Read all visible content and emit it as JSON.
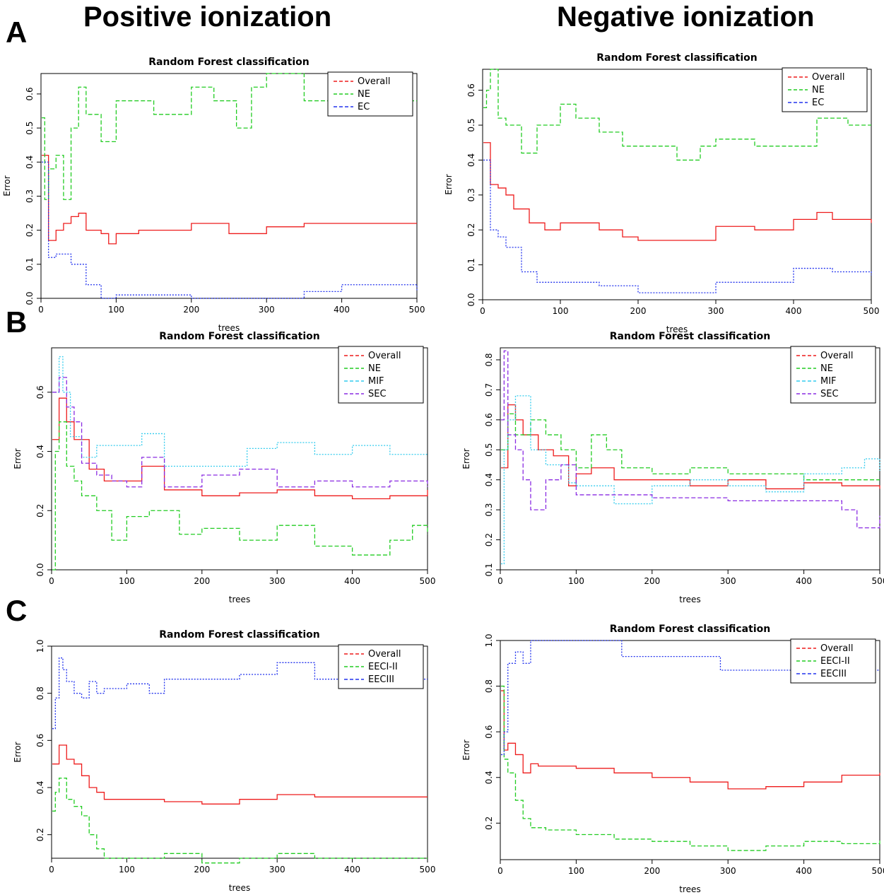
{
  "column_titles": [
    "Positive ionization",
    "Negative ionization"
  ],
  "row_labels": [
    "A",
    "B",
    "C"
  ],
  "colors": {
    "Overall": "#ee1c1c",
    "NE": "#22cc22",
    "EC": "#2233ee",
    "MIF": "#33ccee",
    "SEC": "#8a2be2",
    "EECI-II": "#22cc22",
    "EECIII": "#2233ee"
  },
  "chart_data": [
    {
      "type": "line",
      "panel": "A",
      "ionization": "Positive ionization",
      "title": "Random Forest classification",
      "xlabel": "trees",
      "ylabel": "Error",
      "xlim": [
        0,
        500
      ],
      "ylim": [
        0,
        0.66
      ],
      "xticks": [
        "0",
        "100",
        "200",
        "300",
        "400",
        "500"
      ],
      "yticks": [
        "0.0",
        "0.1",
        "0.2",
        "0.3",
        "0.4",
        "0.5",
        "0.6"
      ],
      "legend": "top-right",
      "grid": false,
      "series": [
        {
          "name": "Overall",
          "x": [
            1,
            10,
            20,
            30,
            40,
            50,
            60,
            80,
            90,
            100,
            130,
            150,
            200,
            250,
            300,
            350,
            400,
            500
          ],
          "y": [
            0.42,
            0.17,
            0.2,
            0.22,
            0.24,
            0.25,
            0.2,
            0.19,
            0.16,
            0.19,
            0.2,
            0.2,
            0.22,
            0.19,
            0.21,
            0.22,
            0.22,
            0.22
          ]
        },
        {
          "name": "NE",
          "x": [
            1,
            5,
            10,
            20,
            30,
            40,
            50,
            60,
            80,
            100,
            150,
            200,
            230,
            260,
            280,
            300,
            350,
            400,
            500
          ],
          "y": [
            0.53,
            0.29,
            0.38,
            0.42,
            0.29,
            0.5,
            0.62,
            0.54,
            0.46,
            0.58,
            0.54,
            0.62,
            0.58,
            0.5,
            0.62,
            0.66,
            0.58,
            0.58,
            0.58
          ]
        },
        {
          "name": "EC",
          "x": [
            1,
            10,
            20,
            40,
            60,
            80,
            100,
            150,
            200,
            250,
            300,
            350,
            400,
            500
          ],
          "y": [
            0.4,
            0.12,
            0.13,
            0.1,
            0.04,
            0.0,
            0.01,
            0.01,
            0.0,
            0.0,
            0.0,
            0.02,
            0.04,
            0.02
          ]
        }
      ]
    },
    {
      "type": "line",
      "panel": "A",
      "ionization": "Negative ionization",
      "title": "Random Forest classification",
      "xlabel": "trees",
      "ylabel": "Error",
      "xlim": [
        0,
        500
      ],
      "ylim": [
        0,
        0.66
      ],
      "xticks": [
        "0",
        "100",
        "200",
        "300",
        "400",
        "500"
      ],
      "yticks": [
        "0.0",
        "0.1",
        "0.2",
        "0.3",
        "0.4",
        "0.5",
        "0.6"
      ],
      "legend": "top-right",
      "grid": false,
      "series": [
        {
          "name": "Overall",
          "x": [
            1,
            10,
            20,
            30,
            40,
            60,
            80,
            100,
            150,
            180,
            200,
            250,
            300,
            350,
            400,
            430,
            450,
            500
          ],
          "y": [
            0.45,
            0.33,
            0.32,
            0.3,
            0.26,
            0.22,
            0.2,
            0.22,
            0.2,
            0.18,
            0.17,
            0.17,
            0.21,
            0.2,
            0.23,
            0.25,
            0.23,
            0.22
          ]
        },
        {
          "name": "NE",
          "x": [
            1,
            5,
            10,
            20,
            30,
            50,
            70,
            100,
            120,
            150,
            180,
            200,
            250,
            280,
            300,
            350,
            400,
            430,
            470,
            500
          ],
          "y": [
            0.55,
            0.6,
            0.66,
            0.52,
            0.5,
            0.42,
            0.5,
            0.56,
            0.52,
            0.48,
            0.44,
            0.44,
            0.4,
            0.44,
            0.46,
            0.44,
            0.44,
            0.52,
            0.5,
            0.5
          ]
        },
        {
          "name": "EC",
          "x": [
            1,
            10,
            20,
            30,
            50,
            70,
            100,
            150,
            200,
            250,
            300,
            350,
            400,
            450,
            500
          ],
          "y": [
            0.4,
            0.2,
            0.18,
            0.15,
            0.08,
            0.05,
            0.05,
            0.04,
            0.02,
            0.02,
            0.05,
            0.05,
            0.09,
            0.08,
            0.07
          ]
        }
      ]
    },
    {
      "type": "line",
      "panel": "B",
      "ionization": "Positive ionization",
      "title": "Random Forest classification",
      "xlabel": "trees",
      "ylabel": "Error",
      "xlim": [
        0,
        500
      ],
      "ylim": [
        0,
        0.75
      ],
      "xticks": [
        "0",
        "100",
        "200",
        "300",
        "400",
        "500"
      ],
      "yticks": [
        "0.0",
        "0.2",
        "0.4",
        "0.6"
      ],
      "legend": "top-right",
      "grid": false,
      "series": [
        {
          "name": "Overall",
          "x": [
            1,
            10,
            20,
            30,
            50,
            70,
            100,
            120,
            150,
            200,
            250,
            300,
            350,
            400,
            450,
            500
          ],
          "y": [
            0.44,
            0.58,
            0.5,
            0.44,
            0.34,
            0.3,
            0.3,
            0.35,
            0.27,
            0.25,
            0.26,
            0.27,
            0.25,
            0.24,
            0.25,
            0.27
          ]
        },
        {
          "name": "NE",
          "x": [
            1,
            5,
            10,
            20,
            30,
            40,
            60,
            80,
            100,
            130,
            170,
            200,
            250,
            300,
            350,
            400,
            450,
            480,
            500
          ],
          "y": [
            0.0,
            0.4,
            0.5,
            0.35,
            0.3,
            0.25,
            0.2,
            0.1,
            0.18,
            0.2,
            0.12,
            0.14,
            0.1,
            0.15,
            0.08,
            0.05,
            0.1,
            0.15,
            0.12
          ]
        },
        {
          "name": "MIF",
          "x": [
            1,
            10,
            15,
            25,
            40,
            60,
            100,
            120,
            150,
            200,
            260,
            300,
            350,
            400,
            450,
            500
          ],
          "y": [
            0.6,
            0.72,
            0.6,
            0.45,
            0.38,
            0.42,
            0.42,
            0.46,
            0.35,
            0.35,
            0.41,
            0.43,
            0.39,
            0.42,
            0.39,
            0.39
          ]
        },
        {
          "name": "SEC",
          "x": [
            1,
            10,
            20,
            30,
            40,
            60,
            80,
            100,
            120,
            150,
            200,
            250,
            300,
            350,
            400,
            450,
            500
          ],
          "y": [
            0.6,
            0.65,
            0.55,
            0.5,
            0.36,
            0.32,
            0.3,
            0.28,
            0.38,
            0.28,
            0.32,
            0.34,
            0.28,
            0.3,
            0.28,
            0.3,
            0.28
          ]
        }
      ]
    },
    {
      "type": "line",
      "panel": "B",
      "ionization": "Negative ionization",
      "title": "Random Forest classification",
      "xlabel": "trees",
      "ylabel": "Error",
      "xlim": [
        0,
        500
      ],
      "ylim": [
        0.1,
        0.84
      ],
      "xticks": [
        "0",
        "100",
        "200",
        "300",
        "400",
        "500"
      ],
      "yticks": [
        "0.1",
        "0.2",
        "0.3",
        "0.4",
        "0.5",
        "0.6",
        "0.7",
        "0.8"
      ],
      "legend": "top-right",
      "grid": false,
      "series": [
        {
          "name": "Overall",
          "x": [
            1,
            10,
            20,
            30,
            50,
            70,
            90,
            100,
            120,
            150,
            200,
            250,
            300,
            350,
            400,
            450,
            500
          ],
          "y": [
            0.44,
            0.65,
            0.6,
            0.55,
            0.5,
            0.48,
            0.38,
            0.42,
            0.44,
            0.4,
            0.4,
            0.38,
            0.4,
            0.37,
            0.39,
            0.38,
            0.37
          ]
        },
        {
          "name": "NE",
          "x": [
            1,
            10,
            20,
            40,
            60,
            80,
            100,
            120,
            140,
            160,
            200,
            250,
            300,
            350,
            400,
            450,
            500
          ],
          "y": [
            0.5,
            0.62,
            0.55,
            0.6,
            0.55,
            0.5,
            0.44,
            0.55,
            0.5,
            0.44,
            0.42,
            0.44,
            0.42,
            0.42,
            0.4,
            0.4,
            0.4
          ]
        },
        {
          "name": "MIF",
          "x": [
            1,
            5,
            10,
            20,
            40,
            60,
            90,
            100,
            150,
            200,
            250,
            300,
            350,
            400,
            450,
            480,
            500
          ],
          "y": [
            0.12,
            0.5,
            0.6,
            0.68,
            0.5,
            0.45,
            0.39,
            0.38,
            0.32,
            0.38,
            0.4,
            0.38,
            0.36,
            0.42,
            0.44,
            0.47,
            0.43
          ]
        },
        {
          "name": "SEC",
          "x": [
            1,
            5,
            10,
            20,
            30,
            40,
            60,
            80,
            100,
            150,
            200,
            250,
            300,
            350,
            400,
            450,
            470,
            500
          ],
          "y": [
            0.6,
            0.83,
            0.55,
            0.5,
            0.4,
            0.3,
            0.4,
            0.45,
            0.35,
            0.35,
            0.34,
            0.34,
            0.33,
            0.33,
            0.33,
            0.3,
            0.24,
            0.28
          ]
        }
      ]
    },
    {
      "type": "line",
      "panel": "C",
      "ionization": "Positive ionization",
      "title": "Random Forest classification",
      "xlabel": "trees",
      "ylabel": "Error",
      "xlim": [
        0,
        500
      ],
      "ylim": [
        0.1,
        1.0
      ],
      "xticks": [
        "0",
        "100",
        "200",
        "300",
        "400",
        "500"
      ],
      "yticks": [
        "0.2",
        "0.4",
        "0.6",
        "0.8",
        "1.0"
      ],
      "legend": "top-right",
      "grid": false,
      "series": [
        {
          "name": "Overall",
          "x": [
            1,
            10,
            20,
            30,
            40,
            50,
            60,
            70,
            100,
            150,
            200,
            250,
            300,
            350,
            400,
            450,
            500
          ],
          "y": [
            0.5,
            0.58,
            0.52,
            0.5,
            0.45,
            0.4,
            0.38,
            0.35,
            0.35,
            0.34,
            0.33,
            0.35,
            0.37,
            0.36,
            0.36,
            0.36,
            0.36
          ]
        },
        {
          "name": "EECI-II",
          "x": [
            1,
            5,
            10,
            20,
            30,
            40,
            50,
            60,
            70,
            100,
            150,
            200,
            250,
            300,
            350,
            400,
            450,
            500
          ],
          "y": [
            0.3,
            0.38,
            0.44,
            0.35,
            0.32,
            0.28,
            0.2,
            0.14,
            0.1,
            0.1,
            0.12,
            0.08,
            0.1,
            0.12,
            0.1,
            0.1,
            0.1,
            0.1
          ]
        },
        {
          "name": "EECIII",
          "x": [
            1,
            5,
            10,
            15,
            20,
            30,
            40,
            50,
            60,
            70,
            100,
            130,
            150,
            200,
            250,
            300,
            350,
            400,
            450,
            500
          ],
          "y": [
            0.65,
            0.78,
            0.95,
            0.9,
            0.85,
            0.8,
            0.78,
            0.85,
            0.8,
            0.82,
            0.84,
            0.8,
            0.86,
            0.86,
            0.88,
            0.93,
            0.86,
            0.86,
            0.86,
            0.86
          ]
        }
      ]
    },
    {
      "type": "line",
      "panel": "C",
      "ionization": "Negative ionization",
      "title": "Random Forest classification",
      "xlabel": "trees",
      "ylabel": "Error",
      "xlim": [
        0,
        500
      ],
      "ylim": [
        0.04,
        1.0
      ],
      "xticks": [
        "0",
        "100",
        "200",
        "300",
        "400",
        "500"
      ],
      "yticks": [
        "0.2",
        "0.4",
        "0.6",
        "0.8",
        "1.0"
      ],
      "legend": "top-right",
      "grid": false,
      "series": [
        {
          "name": "Overall",
          "x": [
            1,
            5,
            10,
            20,
            30,
            40,
            50,
            100,
            150,
            200,
            250,
            300,
            350,
            400,
            450,
            500
          ],
          "y": [
            0.78,
            0.52,
            0.55,
            0.5,
            0.42,
            0.46,
            0.45,
            0.44,
            0.42,
            0.4,
            0.38,
            0.35,
            0.36,
            0.38,
            0.41,
            0.42
          ]
        },
        {
          "name": "EECI-II",
          "x": [
            1,
            5,
            10,
            20,
            30,
            40,
            60,
            100,
            150,
            200,
            250,
            300,
            350,
            400,
            450,
            500
          ],
          "y": [
            0.8,
            0.48,
            0.42,
            0.3,
            0.22,
            0.18,
            0.17,
            0.15,
            0.13,
            0.12,
            0.1,
            0.08,
            0.1,
            0.12,
            0.11,
            0.13
          ]
        },
        {
          "name": "EECIII",
          "x": [
            1,
            5,
            10,
            20,
            30,
            40,
            100,
            130,
            160,
            200,
            250,
            290,
            300,
            350,
            400,
            500
          ],
          "y": [
            0.5,
            0.6,
            0.9,
            0.95,
            0.9,
            1.0,
            1.0,
            1.0,
            0.93,
            0.93,
            0.93,
            0.87,
            0.87,
            0.87,
            0.87,
            0.87
          ]
        }
      ]
    }
  ]
}
